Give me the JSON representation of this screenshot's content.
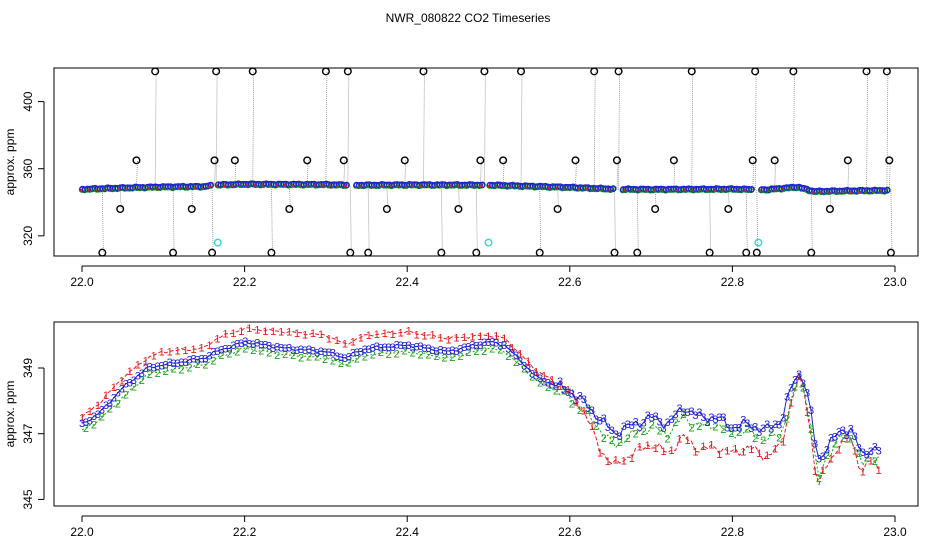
{
  "title": "NWR_080822  CO2 Timeseries",
  "colors": {
    "s1": "#e41a1c",
    "s2": "#1aa31a",
    "s3": "#1f1fd0",
    "black": "#000000",
    "cyan": "#33d6d6",
    "gray": "#8a8a8a"
  },
  "chart_data": [
    {
      "type": "scatter",
      "title": "NWR_080822  CO2 Timeseries",
      "xlabel": "",
      "ylabel": "approx. ppm",
      "xlim": [
        22.0,
        23.0
      ],
      "ylim": [
        308,
        420
      ],
      "xticks": [
        22.0,
        22.2,
        22.4,
        22.6,
        22.8,
        23.0
      ],
      "xtick_labels": [
        "22.0",
        "22.2",
        "22.4",
        "22.6",
        "22.8",
        "23.0"
      ],
      "yticks": [
        320,
        360,
        400
      ],
      "ytick_labels": [
        "320",
        "360",
        "400"
      ],
      "baseline": {
        "x": [
          22.0,
          22.05,
          22.1,
          22.15,
          22.165,
          22.2,
          22.3,
          22.33,
          22.4,
          22.5,
          22.55,
          22.6,
          22.66,
          22.7,
          22.8,
          22.84,
          22.88,
          22.9,
          22.95,
          22.99
        ],
        "y": [
          347.5,
          348.3,
          348.9,
          349.1,
          350.1,
          350.5,
          350.3,
          349.9,
          350.1,
          350.0,
          349.3,
          348.6,
          347.5,
          347.4,
          347.6,
          347.2,
          348.8,
          346.2,
          346.6,
          346.8
        ]
      },
      "outliers": {
        "x": [
          22.025,
          22.047,
          22.067,
          22.09,
          22.112,
          22.135,
          22.16,
          22.163,
          22.165,
          22.188,
          22.21,
          22.233,
          22.255,
          22.277,
          22.3,
          22.322,
          22.327,
          22.33,
          22.352,
          22.375,
          22.397,
          22.42,
          22.442,
          22.463,
          22.485,
          22.49,
          22.495,
          22.518,
          22.54,
          22.563,
          22.585,
          22.607,
          22.63,
          22.655,
          22.658,
          22.66,
          22.683,
          22.705,
          22.728,
          22.75,
          22.772,
          22.795,
          22.817,
          22.825,
          22.828,
          22.83,
          22.852,
          22.875,
          22.897,
          22.92,
          22.942,
          22.965,
          22.99,
          22.993,
          22.995
        ],
        "y": [
          310,
          336,
          365,
          418,
          310,
          336,
          310,
          365,
          418,
          365,
          418,
          310,
          336,
          365,
          418,
          365,
          418,
          310,
          310,
          336,
          365,
          418,
          310,
          336,
          310,
          365,
          418,
          365,
          418,
          310,
          336,
          365,
          418,
          310,
          365,
          418,
          310,
          336,
          365,
          418,
          310,
          336,
          310,
          365,
          418,
          310,
          365,
          418,
          310,
          336,
          365,
          418,
          418,
          365,
          310
        ]
      },
      "cyan_points": {
        "x": [
          22.167,
          22.5,
          22.832
        ],
        "y": [
          316,
          316,
          316
        ]
      }
    },
    {
      "type": "line",
      "title": "",
      "xlabel": "",
      "ylabel": "approx. ppm",
      "xlim": [
        22.0,
        23.0
      ],
      "ylim": [
        344.8,
        350.4
      ],
      "xticks": [
        22.0,
        22.2,
        22.4,
        22.6,
        22.8,
        23.0
      ],
      "xtick_labels": [
        "22.0",
        "22.2",
        "22.4",
        "22.6",
        "22.8",
        "23.0"
      ],
      "yticks": [
        345,
        347,
        349
      ],
      "ytick_labels": [
        "345",
        "347",
        "349"
      ],
      "series": [
        {
          "name": "1",
          "marker": "1",
          "x": [
            22.0,
            22.02,
            22.05,
            22.08,
            22.1,
            22.15,
            22.165,
            22.2,
            22.25,
            22.3,
            22.325,
            22.33,
            22.35,
            22.4,
            22.45,
            22.5,
            22.52,
            22.56,
            22.6,
            22.62,
            22.635,
            22.655,
            22.67,
            22.7,
            22.72,
            22.74,
            22.76,
            22.78,
            22.8,
            22.82,
            22.84,
            22.86,
            22.875,
            22.885,
            22.895,
            22.905,
            22.915,
            22.93,
            22.945,
            22.96,
            22.97,
            22.98
          ],
          "y": [
            347.5,
            347.9,
            348.7,
            349.3,
            349.5,
            349.6,
            349.9,
            350.2,
            350.1,
            350.0,
            349.7,
            349.8,
            350.0,
            350.1,
            349.9,
            350.0,
            349.9,
            348.9,
            348.3,
            347.6,
            346.6,
            346.0,
            346.3,
            346.7,
            346.4,
            346.9,
            346.5,
            346.6,
            346.4,
            346.6,
            346.3,
            346.6,
            348.3,
            348.7,
            347.3,
            345.3,
            346.0,
            346.6,
            346.9,
            345.8,
            346.2,
            346.0
          ]
        },
        {
          "name": "2",
          "marker": "2",
          "x": [
            22.0,
            22.02,
            22.05,
            22.08,
            22.1,
            22.15,
            22.165,
            22.2,
            22.25,
            22.3,
            22.325,
            22.33,
            22.35,
            22.4,
            22.45,
            22.5,
            22.52,
            22.56,
            22.6,
            22.62,
            22.635,
            22.655,
            22.67,
            22.7,
            22.72,
            22.74,
            22.76,
            22.78,
            22.8,
            22.82,
            22.84,
            22.86,
            22.875,
            22.885,
            22.895,
            22.905,
            22.915,
            22.93,
            22.945,
            22.96,
            22.97,
            22.98
          ],
          "y": [
            347.1,
            347.4,
            348.1,
            348.8,
            348.9,
            349.1,
            349.3,
            349.6,
            349.4,
            349.3,
            349.1,
            349.2,
            349.4,
            349.5,
            349.3,
            349.6,
            349.5,
            348.6,
            348.1,
            347.6,
            347.2,
            346.6,
            346.9,
            347.2,
            347.0,
            347.5,
            347.2,
            347.3,
            347.0,
            347.1,
            346.8,
            347.0,
            348.2,
            348.6,
            347.6,
            345.5,
            346.3,
            346.8,
            347.0,
            346.0,
            346.4,
            346.3
          ]
        },
        {
          "name": "3",
          "marker": "3",
          "x": [
            22.0,
            22.02,
            22.05,
            22.08,
            22.1,
            22.15,
            22.165,
            22.2,
            22.25,
            22.3,
            22.325,
            22.33,
            22.35,
            22.4,
            22.45,
            22.5,
            22.52,
            22.56,
            22.6,
            22.62,
            22.635,
            22.655,
            22.67,
            22.7,
            22.72,
            22.74,
            22.76,
            22.78,
            22.8,
            22.82,
            22.84,
            22.86,
            22.875,
            22.885,
            22.895,
            22.905,
            22.915,
            22.93,
            22.945,
            22.96,
            22.97,
            22.98
          ],
          "y": [
            347.3,
            347.6,
            348.4,
            349.0,
            349.1,
            349.3,
            349.5,
            349.8,
            349.6,
            349.5,
            349.3,
            349.4,
            349.6,
            349.7,
            349.5,
            349.8,
            349.7,
            348.7,
            348.3,
            347.9,
            347.5,
            347.0,
            347.2,
            347.5,
            347.3,
            347.8,
            347.5,
            347.5,
            347.2,
            347.3,
            347.1,
            347.4,
            348.6,
            348.9,
            347.9,
            346.1,
            346.6,
            347.0,
            347.2,
            346.3,
            346.6,
            346.5
          ]
        }
      ]
    }
  ]
}
